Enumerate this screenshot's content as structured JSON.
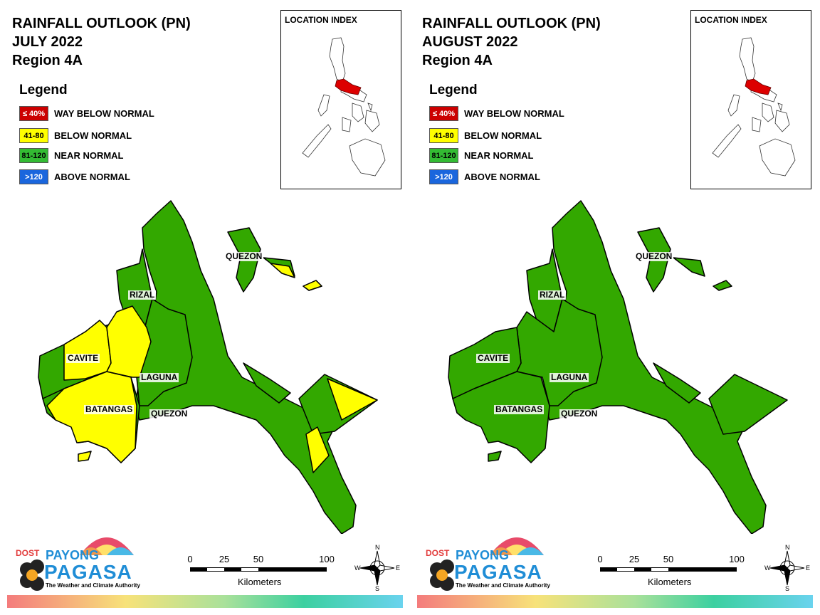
{
  "panels": [
    {
      "title_line1": "RAINFALL OUTLOOK (PN)",
      "title_line2": "JULY 2022",
      "title_line3": "Region 4A",
      "legend_title": "Legend",
      "legend": [
        {
          "code": "≤ 40%",
          "label": "WAY BELOW NORMAL",
          "color": "#cc0000",
          "text_color": "#ffffff"
        },
        {
          "code": "41-80",
          "label": "BELOW NORMAL",
          "color": "#ffff00",
          "text_color": "#000000"
        },
        {
          "code": "81-120",
          "label": "NEAR NORMAL",
          "color": "#33bb33",
          "text_color": "#000000"
        },
        {
          "code": ">120",
          "label": "ABOVE NORMAL",
          "color": "#1a66dd",
          "text_color": "#ffffff"
        }
      ],
      "inset_title": "LOCATION INDEX",
      "provinces": {
        "quezon_north": "QUEZON",
        "rizal": "RIZAL",
        "cavite": "CAVITE",
        "laguna": "LAGUNA",
        "batangas": "BATANGAS",
        "quezon_south": "QUEZON"
      },
      "province_categories": {
        "cavite": "BELOW NORMAL",
        "batangas": "BELOW NORMAL",
        "laguna": "BELOW NORMAL",
        "rizal": "NEAR NORMAL",
        "quezon": "NEAR NORMAL"
      },
      "logo": {
        "dost": "DOST",
        "payong": "PAYONG",
        "pagasa": "PAGASA",
        "tagline": "The Weather and Climate Authority"
      },
      "scale": {
        "t0": "0",
        "t25": "25",
        "t50": "50",
        "t100": "100",
        "unit": "Kilometers"
      },
      "compass": {
        "n": "N",
        "s": "S",
        "e": "E",
        "w": "W"
      }
    },
    {
      "title_line1": "RAINFALL OUTLOOK (PN)",
      "title_line2": "AUGUST 2022",
      "title_line3": "Region 4A",
      "legend_title": "Legend",
      "legend": [
        {
          "code": "≤ 40%",
          "label": "WAY BELOW NORMAL",
          "color": "#cc0000",
          "text_color": "#ffffff"
        },
        {
          "code": "41-80",
          "label": "BELOW NORMAL",
          "color": "#ffff00",
          "text_color": "#000000"
        },
        {
          "code": "81-120",
          "label": "NEAR NORMAL",
          "color": "#33bb33",
          "text_color": "#000000"
        },
        {
          "code": ">120",
          "label": "ABOVE NORMAL",
          "color": "#1a66dd",
          "text_color": "#ffffff"
        }
      ],
      "inset_title": "LOCATION INDEX",
      "provinces": {
        "quezon_north": "QUEZON",
        "rizal": "RIZAL",
        "cavite": "CAVITE",
        "laguna": "LAGUNA",
        "batangas": "BATANGAS",
        "quezon_south": "QUEZON"
      },
      "province_categories": {
        "cavite": "NEAR NORMAL",
        "batangas": "NEAR NORMAL",
        "laguna": "NEAR NORMAL",
        "rizal": "NEAR NORMAL",
        "quezon": "NEAR NORMAL"
      },
      "logo": {
        "dost": "DOST",
        "payong": "PAYONG",
        "pagasa": "PAGASA",
        "tagline": "The Weather and Climate Authority"
      },
      "scale": {
        "t0": "0",
        "t25": "25",
        "t50": "50",
        "t100": "100",
        "unit": "Kilometers"
      },
      "compass": {
        "n": "N",
        "s": "S",
        "e": "E",
        "w": "W"
      }
    }
  ],
  "colors": {
    "green": "#33a800",
    "yellow": "#ffff00",
    "red": "#dd0000",
    "outline": "#000000"
  }
}
